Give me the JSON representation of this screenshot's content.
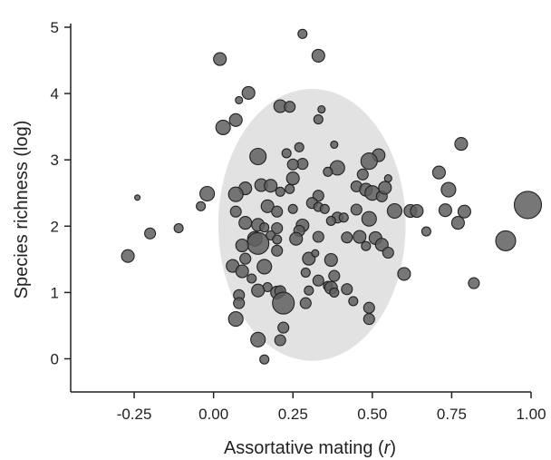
{
  "chart_data": {
    "type": "scatter",
    "title": "",
    "xlabel_text": "Assortative mating (",
    "xlabel_var": "r",
    "xlabel_close": ")",
    "ylabel": "Species richness (log)",
    "xlim": [
      -0.45,
      1.0
    ],
    "ylim": [
      -0.5,
      5.0
    ],
    "x_ticks": [
      {
        "value": -0.25,
        "label": "-0.25"
      },
      {
        "value": 0.0,
        "label": "0.00"
      },
      {
        "value": 0.25,
        "label": "0.25"
      },
      {
        "value": 0.5,
        "label": "0.50"
      },
      {
        "value": 0.75,
        "label": "0.75"
      },
      {
        "value": 1.0,
        "label": "1.00"
      }
    ],
    "y_ticks": [
      {
        "value": 0,
        "label": "0"
      },
      {
        "value": 1,
        "label": "1"
      },
      {
        "value": 2,
        "label": "2"
      },
      {
        "value": 3,
        "label": "3"
      },
      {
        "value": 4,
        "label": "4"
      },
      {
        "value": 5,
        "label": "5"
      }
    ],
    "grid": false,
    "colors": {
      "point_fill": "#5f5f5f",
      "point_stroke": "#222222",
      "ellipse_fill": "#e2e2e2",
      "axis": "#222222"
    },
    "ellipse": {
      "cx": 0.31,
      "cy": 2.02,
      "rx": 0.295,
      "ry": 2.05
    },
    "points": [
      {
        "x": 0.28,
        "y": 4.9,
        "size": 5
      },
      {
        "x": 0.02,
        "y": 4.52,
        "size": 7
      },
      {
        "x": 0.33,
        "y": 4.57,
        "size": 7
      },
      {
        "x": 0.11,
        "y": 4.01,
        "size": 7
      },
      {
        "x": 0.08,
        "y": 3.9,
        "size": 4
      },
      {
        "x": 0.21,
        "y": 3.81,
        "size": 7
      },
      {
        "x": 0.24,
        "y": 3.8,
        "size": 6
      },
      {
        "x": 0.33,
        "y": 3.61,
        "size": 5
      },
      {
        "x": 0.34,
        "y": 3.76,
        "size": 4
      },
      {
        "x": 0.07,
        "y": 3.6,
        "size": 7
      },
      {
        "x": 0.03,
        "y": 3.49,
        "size": 8
      },
      {
        "x": 0.14,
        "y": 3.05,
        "size": 9
      },
      {
        "x": 0.23,
        "y": 3.1,
        "size": 5
      },
      {
        "x": 0.27,
        "y": 3.19,
        "size": 5
      },
      {
        "x": 0.38,
        "y": 3.23,
        "size": 4
      },
      {
        "x": 0.78,
        "y": 3.24,
        "size": 7
      },
      {
        "x": 0.52,
        "y": 3.07,
        "size": 7
      },
      {
        "x": 0.49,
        "y": 2.98,
        "size": 9
      },
      {
        "x": 0.39,
        "y": 2.88,
        "size": 8
      },
      {
        "x": 0.36,
        "y": 2.82,
        "size": 5
      },
      {
        "x": 0.28,
        "y": 2.94,
        "size": 6
      },
      {
        "x": 0.25,
        "y": 2.93,
        "size": 6
      },
      {
        "x": 0.71,
        "y": 2.81,
        "size": 7
      },
      {
        "x": 0.47,
        "y": 2.78,
        "size": 6
      },
      {
        "x": 0.55,
        "y": 2.72,
        "size": 4
      },
      {
        "x": 0.25,
        "y": 2.72,
        "size": 7
      },
      {
        "x": 0.15,
        "y": 2.62,
        "size": 7
      },
      {
        "x": 0.1,
        "y": 2.57,
        "size": 7
      },
      {
        "x": 0.07,
        "y": 2.48,
        "size": 8
      },
      {
        "x": 0.18,
        "y": 2.61,
        "size": 7
      },
      {
        "x": 0.24,
        "y": 2.56,
        "size": 5
      },
      {
        "x": 0.21,
        "y": 2.52,
        "size": 5
      },
      {
        "x": 0.33,
        "y": 2.46,
        "size": 6
      },
      {
        "x": 0.45,
        "y": 2.6,
        "size": 6
      },
      {
        "x": 0.48,
        "y": 2.55,
        "size": 7
      },
      {
        "x": 0.5,
        "y": 2.5,
        "size": 8
      },
      {
        "x": 0.53,
        "y": 2.45,
        "size": 6
      },
      {
        "x": 0.54,
        "y": 2.58,
        "size": 7
      },
      {
        "x": 0.74,
        "y": 2.55,
        "size": 8
      },
      {
        "x": -0.02,
        "y": 2.49,
        "size": 8
      },
      {
        "x": -0.24,
        "y": 2.43,
        "size": 3
      },
      {
        "x": -0.04,
        "y": 2.3,
        "size": 5
      },
      {
        "x": 0.07,
        "y": 2.22,
        "size": 6
      },
      {
        "x": 0.17,
        "y": 2.3,
        "size": 7
      },
      {
        "x": 0.2,
        "y": 2.22,
        "size": 6
      },
      {
        "x": 0.25,
        "y": 2.26,
        "size": 5
      },
      {
        "x": 0.31,
        "y": 2.35,
        "size": 6
      },
      {
        "x": 0.33,
        "y": 2.29,
        "size": 5
      },
      {
        "x": 0.35,
        "y": 2.26,
        "size": 5
      },
      {
        "x": 0.45,
        "y": 2.25,
        "size": 6
      },
      {
        "x": 0.57,
        "y": 2.23,
        "size": 8
      },
      {
        "x": 0.62,
        "y": 2.23,
        "size": 7
      },
      {
        "x": 0.64,
        "y": 2.23,
        "size": 7
      },
      {
        "x": 0.73,
        "y": 2.24,
        "size": 7
      },
      {
        "x": 0.79,
        "y": 2.22,
        "size": 7
      },
      {
        "x": 0.39,
        "y": 2.13,
        "size": 6
      },
      {
        "x": 0.41,
        "y": 2.13,
        "size": 5
      },
      {
        "x": 0.49,
        "y": 2.11,
        "size": 8
      },
      {
        "x": 0.37,
        "y": 2.08,
        "size": 5
      },
      {
        "x": 0.1,
        "y": 2.05,
        "size": 7
      },
      {
        "x": 0.14,
        "y": 2.02,
        "size": 7
      },
      {
        "x": 0.16,
        "y": 1.98,
        "size": 5
      },
      {
        "x": 0.2,
        "y": 1.97,
        "size": 6
      },
      {
        "x": 0.28,
        "y": 2.01,
        "size": 7
      },
      {
        "x": 0.27,
        "y": 1.93,
        "size": 6
      },
      {
        "x": 0.77,
        "y": 2.05,
        "size": 7
      },
      {
        "x": 0.99,
        "y": 2.32,
        "size": 15
      },
      {
        "x": -0.11,
        "y": 1.97,
        "size": 5
      },
      {
        "x": -0.2,
        "y": 1.89,
        "size": 6
      },
      {
        "x": 0.13,
        "y": 1.81,
        "size": 8
      },
      {
        "x": 0.14,
        "y": 1.74,
        "size": 12
      },
      {
        "x": 0.18,
        "y": 1.86,
        "size": 5
      },
      {
        "x": 0.2,
        "y": 1.8,
        "size": 5
      },
      {
        "x": 0.26,
        "y": 1.81,
        "size": 7
      },
      {
        "x": 0.33,
        "y": 1.84,
        "size": 6
      },
      {
        "x": 0.42,
        "y": 1.83,
        "size": 6
      },
      {
        "x": 0.46,
        "y": 1.84,
        "size": 7
      },
      {
        "x": 0.51,
        "y": 1.82,
        "size": 7
      },
      {
        "x": 0.53,
        "y": 1.72,
        "size": 7
      },
      {
        "x": 0.55,
        "y": 1.6,
        "size": 6
      },
      {
        "x": 0.67,
        "y": 1.92,
        "size": 5
      },
      {
        "x": 0.09,
        "y": 1.71,
        "size": 7
      },
      {
        "x": 0.2,
        "y": 1.63,
        "size": 6
      },
      {
        "x": 0.48,
        "y": 1.7,
        "size": 5
      },
      {
        "x": -0.27,
        "y": 1.55,
        "size": 7
      },
      {
        "x": 0.3,
        "y": 1.51,
        "size": 7
      },
      {
        "x": 0.37,
        "y": 1.49,
        "size": 7
      },
      {
        "x": 0.32,
        "y": 1.59,
        "size": 4
      },
      {
        "x": 0.1,
        "y": 1.51,
        "size": 6
      },
      {
        "x": 0.06,
        "y": 1.4,
        "size": 7
      },
      {
        "x": 0.09,
        "y": 1.32,
        "size": 7
      },
      {
        "x": 0.16,
        "y": 1.39,
        "size": 8
      },
      {
        "x": 0.29,
        "y": 1.3,
        "size": 5
      },
      {
        "x": 0.38,
        "y": 1.25,
        "size": 6
      },
      {
        "x": 0.6,
        "y": 1.28,
        "size": 7
      },
      {
        "x": 0.33,
        "y": 1.18,
        "size": 6
      },
      {
        "x": 0.36,
        "y": 1.1,
        "size": 5
      },
      {
        "x": 0.37,
        "y": 1.07,
        "size": 7
      },
      {
        "x": 0.42,
        "y": 1.05,
        "size": 6
      },
      {
        "x": 0.12,
        "y": 1.21,
        "size": 5
      },
      {
        "x": 0.17,
        "y": 1.08,
        "size": 5
      },
      {
        "x": 0.14,
        "y": 1.03,
        "size": 7
      },
      {
        "x": 0.2,
        "y": 1.0,
        "size": 7
      },
      {
        "x": 0.21,
        "y": 1.02,
        "size": 6
      },
      {
        "x": 0.3,
        "y": 1.03,
        "size": 5
      },
      {
        "x": 0.38,
        "y": 1.0,
        "size": 5
      },
      {
        "x": 0.44,
        "y": 0.87,
        "size": 5
      },
      {
        "x": 0.49,
        "y": 0.77,
        "size": 6
      },
      {
        "x": 0.08,
        "y": 0.96,
        "size": 6
      },
      {
        "x": 0.08,
        "y": 0.84,
        "size": 6
      },
      {
        "x": 0.22,
        "y": 0.84,
        "size": 12
      },
      {
        "x": 0.29,
        "y": 0.84,
        "size": 6
      },
      {
        "x": 0.82,
        "y": 1.14,
        "size": 6
      },
      {
        "x": 0.92,
        "y": 1.78,
        "size": 11
      },
      {
        "x": 0.07,
        "y": 0.6,
        "size": 8
      },
      {
        "x": 0.49,
        "y": 0.6,
        "size": 6
      },
      {
        "x": 0.22,
        "y": 0.47,
        "size": 6
      },
      {
        "x": 0.14,
        "y": 0.29,
        "size": 8
      },
      {
        "x": 0.21,
        "y": 0.28,
        "size": 6
      },
      {
        "x": 0.16,
        "y": -0.01,
        "size": 5
      }
    ]
  }
}
